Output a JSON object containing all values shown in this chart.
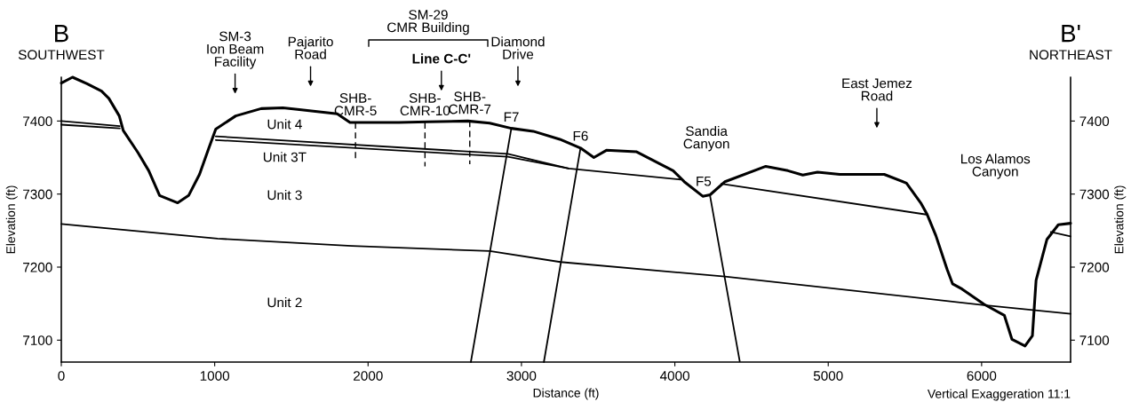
{
  "chart_data": {
    "type": "line",
    "xlabel": "Distance (ft)",
    "ylabel": "Elevation (ft)",
    "y2label": "Elevation (ft)",
    "xlim": [
      0,
      6580
    ],
    "xticks": [
      0,
      1000,
      2000,
      3000,
      4000,
      5000,
      6000
    ],
    "ylim": [
      7070,
      7460
    ],
    "yticks": [
      7100,
      7200,
      7300,
      7400
    ],
    "y2lim": [
      7070,
      7460
    ],
    "y2ticks": [
      7100,
      7200,
      7300,
      7400
    ],
    "grid": false,
    "marker": "none",
    "series": [
      {
        "color": "#000000",
        "line_style": "solid",
        "x": [
          0,
          73,
          168,
          262,
          310,
          378,
          404,
          499,
          570,
          641,
          759,
          830,
          901,
          960,
          1007,
          1137,
          1303,
          1445,
          1539,
          1799,
          1882,
          2201,
          2390,
          2651,
          2793,
          2934,
          3077,
          3250,
          3385,
          3472,
          3554,
          3748,
          3989,
          4061,
          4182,
          4230,
          4327,
          4593,
          4737,
          4834,
          4930,
          5075,
          5365,
          5510,
          5606,
          5643,
          5702,
          5775,
          5811,
          5872,
          6017,
          6148,
          6198,
          6283,
          6331,
          6355,
          6426,
          6500,
          6580
        ],
        "values": [
          7452,
          7460,
          7451,
          7441,
          7431,
          7407,
          7387,
          7357,
          7332,
          7298,
          7288,
          7298,
          7327,
          7362,
          7389,
          7407,
          7417,
          7418,
          7416,
          7410,
          7398,
          7398,
          7399,
          7400,
          7397,
          7390,
          7386,
          7375,
          7363,
          7350,
          7360,
          7358,
          7332,
          7317,
          7297,
          7299,
          7317,
          7338,
          7332,
          7326,
          7330,
          7327,
          7327,
          7315,
          7287,
          7273,
          7243,
          7197,
          7177,
          7170,
          7149,
          7134,
          7101,
          7092,
          7106,
          7182,
          7238,
          7258,
          7260
        ]
      },
      {
        "color": "#000000",
        "line_style": "solid",
        "x": [
          0,
          381
        ],
        "values": [
          7400,
          7393
        ]
      },
      {
        "color": "#000000",
        "line_style": "solid",
        "x": [
          0,
          381
        ],
        "values": [
          7395,
          7390
        ]
      },
      {
        "color": "#000000",
        "line_style": "solid",
        "x": [
          1007,
          2911,
          3308
        ],
        "values": [
          7379,
          7355,
          7335
        ]
      },
      {
        "color": "#000000",
        "line_style": "solid",
        "x": [
          1007,
          2911,
          3308,
          4037
        ],
        "values": [
          7374,
          7351,
          7335,
          7320
        ]
      },
      {
        "color": "#000000",
        "line_style": "solid",
        "x": [
          4303,
          5640
        ],
        "values": [
          7314,
          7272
        ]
      },
      {
        "color": "#000000",
        "line_style": "solid",
        "x": [
          6451,
          6580
        ],
        "values": [
          7248,
          7242
        ]
      },
      {
        "color": "#000000",
        "line_style": "solid",
        "x": [
          0,
          1019,
          1894,
          2793,
          3254,
          4327,
          6017,
          6580
        ],
        "values": [
          7259,
          7239,
          7229,
          7222,
          7207,
          7187,
          7148,
          7136
        ]
      },
      {
        "color": "#000000",
        "line_style": "solid",
        "x": [
          2934,
          2670
        ],
        "values": [
          7390,
          7070
        ]
      },
      {
        "color": "#000000",
        "line_style": "solid",
        "x": [
          3385,
          3146
        ],
        "values": [
          7363,
          7070
        ]
      },
      {
        "color": "#000000",
        "line_style": "solid",
        "x": [
          4230,
          4423
        ],
        "values": [
          7297,
          7071
        ]
      },
      {
        "color": "#000000",
        "line_style": "dashed",
        "x": [
          1918,
          1918
        ],
        "values": [
          7398,
          7347
        ]
      },
      {
        "color": "#000000",
        "line_style": "dashed",
        "x": [
          2371,
          2371
        ],
        "values": [
          7398,
          7338
        ]
      },
      {
        "color": "#000000",
        "line_style": "dashed",
        "x": [
          2663,
          2663
        ],
        "values": [
          7400,
          7341
        ]
      }
    ],
    "annotations": [
      "B",
      "SOUTHWEST",
      "B'",
      "NORTHEAST",
      "SM-29\nCMR Building",
      "Vertical Exaggeration 11:1",
      "SM-3\nIon Beam\nFacility",
      "Pajarito\nRoad",
      "Line C-C'",
      "Diamond\nDrive",
      "East Jemez\nRoad",
      "SHB-\nCMR-5",
      "SHB-\nCMR-10",
      "SHB-\nCMR-7",
      "F7",
      "F6",
      "F5",
      "Unit 4",
      "Unit 3T",
      "Unit 3",
      "Unit 2",
      "Sandia\nCanyon",
      "Los Alamos\nCanyon"
    ]
  }
}
